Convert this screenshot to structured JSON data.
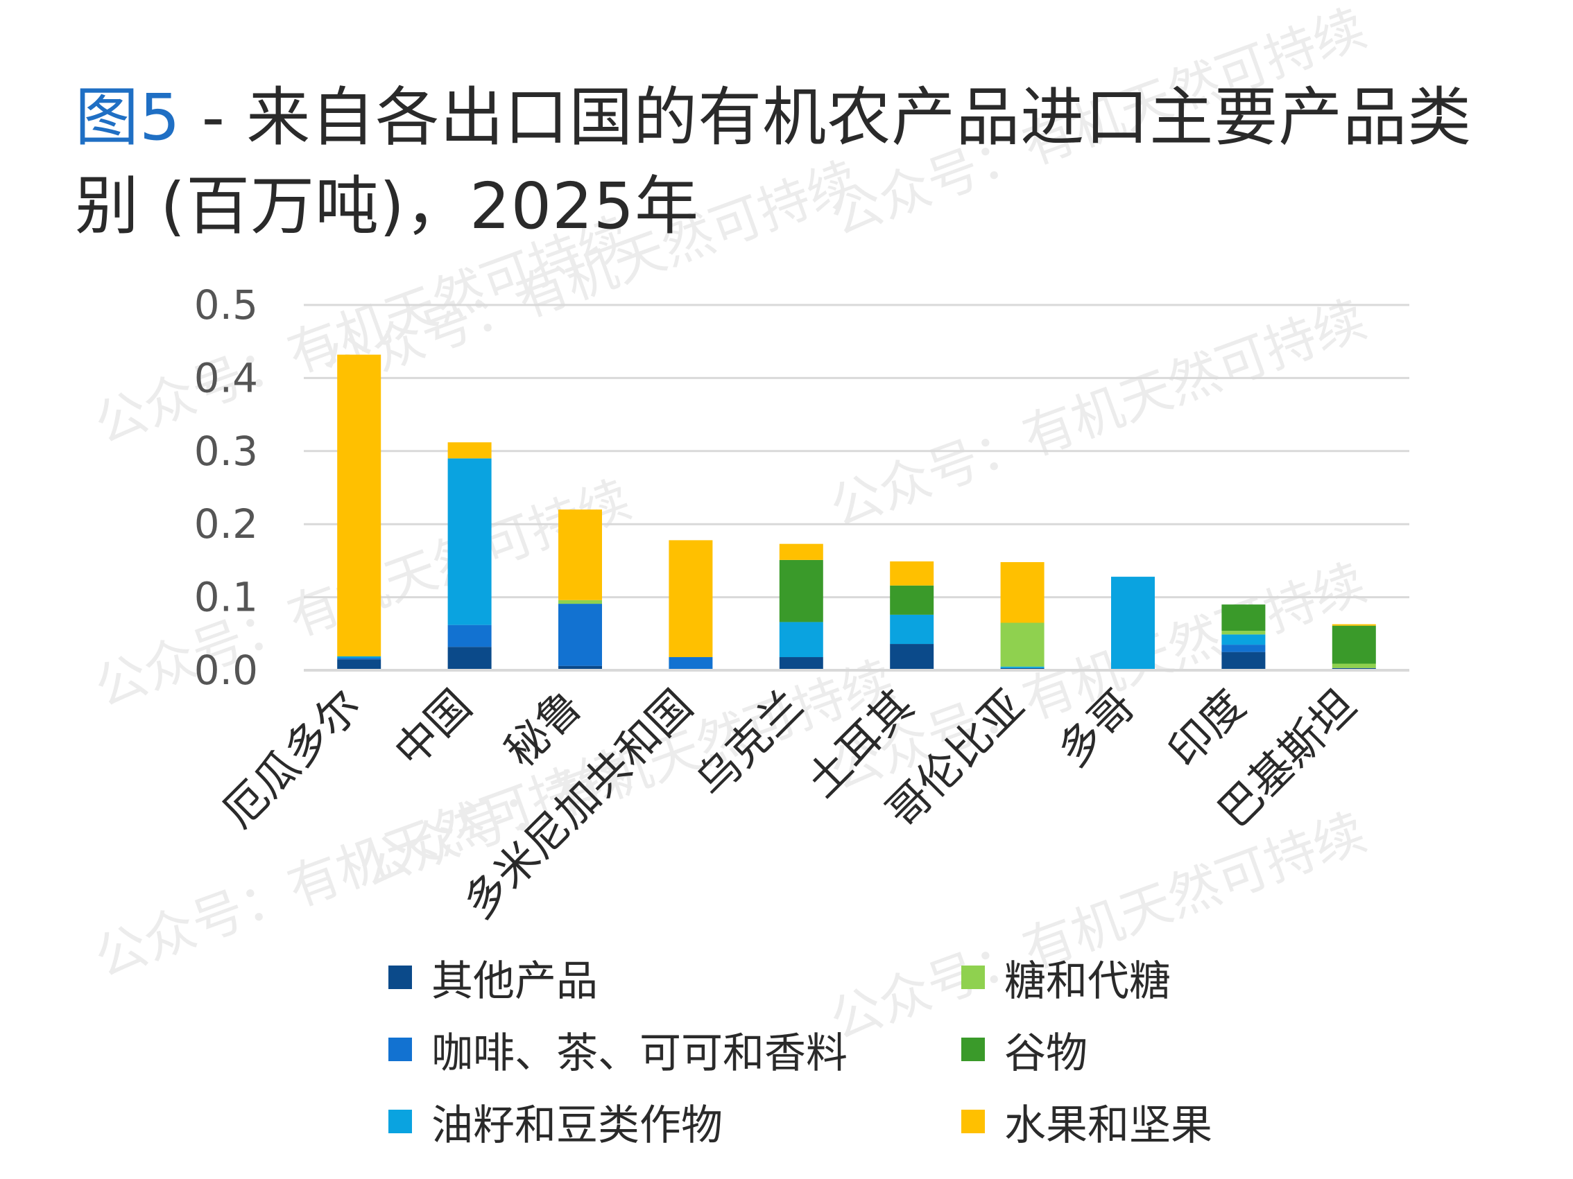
{
  "title": {
    "fig_label": "图5",
    "text": " - 来自各出口国的有机农产品进口主要产品类别 (百万吨)，2025年"
  },
  "watermark_text": "公众号：有机天然可持续",
  "chart_data": {
    "type": "bar",
    "stacked": true,
    "title": "图5 - 来自各出口国的有机农产品进口主要产品类别 (百万吨)，2025年",
    "categories": [
      "厄瓜多尔",
      "中国",
      "秘鲁",
      "多米尼加共和国",
      "乌克兰",
      "土耳其",
      "哥伦比亚",
      "多哥",
      "印度",
      "巴基斯坦"
    ],
    "ylim": [
      0,
      0.5
    ],
    "yticks": [
      "0.0",
      "0.1",
      "0.2",
      "0.3",
      "0.4",
      "0.5"
    ],
    "grid": true,
    "legend_position": "bottom",
    "series": [
      {
        "name": "其他产品",
        "color": "#0b4a8a",
        "values": [
          0.015,
          0.032,
          0.006,
          0.0,
          0.018,
          0.036,
          0.003,
          0.0,
          0.025,
          0.003
        ]
      },
      {
        "name": "咖啡、茶、可可和香料",
        "color": "#1272d1",
        "values": [
          0.002,
          0.03,
          0.085,
          0.018,
          0.0,
          0.0,
          0.0,
          0.0,
          0.01,
          0.0
        ]
      },
      {
        "name": "油籽和豆类作物",
        "color": "#0aa3e0",
        "values": [
          0.002,
          0.228,
          0.0,
          0.0,
          0.048,
          0.04,
          0.002,
          0.128,
          0.014,
          0.0
        ]
      },
      {
        "name": "糖和代糖",
        "color": "#8fd14f",
        "values": [
          0.0,
          0.0,
          0.005,
          0.0,
          0.0,
          0.0,
          0.06,
          0.0,
          0.005,
          0.006
        ]
      },
      {
        "name": "谷物",
        "color": "#3a9a2a",
        "values": [
          0.0,
          0.0,
          0.0,
          0.0,
          0.085,
          0.04,
          0.0,
          0.0,
          0.036,
          0.052
        ]
      },
      {
        "name": "水果和坚果",
        "color": "#ffc000",
        "values": [
          0.413,
          0.022,
          0.124,
          0.16,
          0.022,
          0.033,
          0.083,
          0.0,
          0.0,
          0.002
        ]
      }
    ]
  }
}
